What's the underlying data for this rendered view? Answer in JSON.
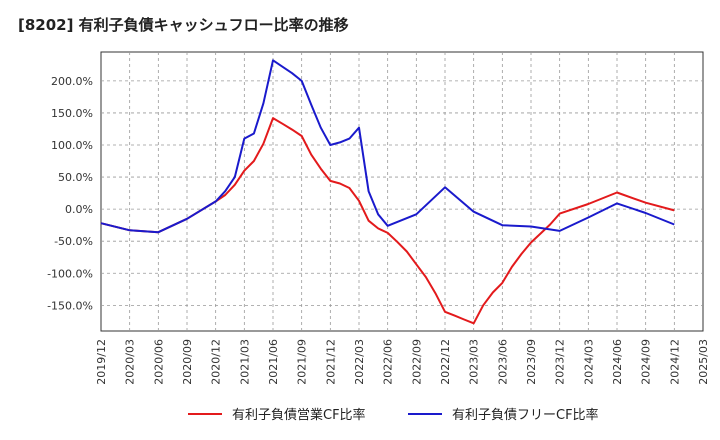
{
  "chart_data": {
    "type": "line",
    "title": "[8202]  有利子負債キャッシュフロー比率の推移",
    "xlabel": "",
    "ylabel": "",
    "ylim": [
      -190,
      245
    ],
    "yticks": [
      200,
      150,
      100,
      50,
      0,
      -50,
      -100,
      -150
    ],
    "ytick_labels": [
      "200.0%",
      "150.0%",
      "100.0%",
      "50.0%",
      "0.0%",
      "-50.0%",
      "-100.0%",
      "-150.0%"
    ],
    "x_tick_labels": [
      "2019/12",
      "2020/03",
      "2020/06",
      "2020/09",
      "2020/12",
      "2021/03",
      "2021/06",
      "2021/09",
      "2021/12",
      "2022/03",
      "2022/06",
      "2022/09",
      "2022/12",
      "2023/03",
      "2023/06",
      "2023/09",
      "2023/12",
      "2024/03",
      "2024/06",
      "2024/09",
      "2024/12",
      "2025/03"
    ],
    "grid": true,
    "legend_position": "bottom",
    "series": [
      {
        "name": "有利子負債営業CF比率",
        "color": "#e31a1c",
        "points": [
          [
            "2019/12",
            -22
          ],
          [
            "2020/03",
            -33
          ],
          [
            "2020/06",
            -36
          ],
          [
            "2020/09",
            -15
          ],
          [
            "2020/12",
            12
          ],
          [
            "2021/01",
            22
          ],
          [
            "2021/02",
            38
          ],
          [
            "2021/03",
            60
          ],
          [
            "2021/04",
            75
          ],
          [
            "2021/05",
            102
          ],
          [
            "2021/06",
            142
          ],
          [
            "2021/07",
            133
          ],
          [
            "2021/08",
            124
          ],
          [
            "2021/09",
            114
          ],
          [
            "2021/10",
            85
          ],
          [
            "2021/11",
            63
          ],
          [
            "2021/12",
            44
          ],
          [
            "2022/01",
            40
          ],
          [
            "2022/02",
            33
          ],
          [
            "2022/03",
            13
          ],
          [
            "2022/04",
            -18
          ],
          [
            "2022/05",
            -30
          ],
          [
            "2022/06",
            -37
          ],
          [
            "2022/07",
            -51
          ],
          [
            "2022/08",
            -66
          ],
          [
            "2022/09",
            -86
          ],
          [
            "2022/10",
            -106
          ],
          [
            "2022/11",
            -131
          ],
          [
            "2022/12",
            -160
          ],
          [
            "2023/01",
            -166
          ],
          [
            "2023/02",
            -172
          ],
          [
            "2023/03",
            -178
          ],
          [
            "2023/04",
            -150
          ],
          [
            "2023/05",
            -130
          ],
          [
            "2023/06",
            -115
          ],
          [
            "2023/07",
            -90
          ],
          [
            "2023/08",
            -70
          ],
          [
            "2023/09",
            -52
          ],
          [
            "2023/10",
            -38
          ],
          [
            "2023/11",
            -24
          ],
          [
            "2023/12",
            -7
          ],
          [
            "2024/03",
            8
          ],
          [
            "2024/06",
            26
          ],
          [
            "2024/09",
            10
          ],
          [
            "2024/12",
            -2
          ]
        ]
      },
      {
        "name": "有利子負債フリーCF比率",
        "color": "#1a1acc",
        "points": [
          [
            "2019/12",
            -22
          ],
          [
            "2020/03",
            -33
          ],
          [
            "2020/06",
            -36
          ],
          [
            "2020/09",
            -15
          ],
          [
            "2020/12",
            12
          ],
          [
            "2021/01",
            28
          ],
          [
            "2021/02",
            50
          ],
          [
            "2021/03",
            110
          ],
          [
            "2021/04",
            118
          ],
          [
            "2021/05",
            165
          ],
          [
            "2021/06",
            232
          ],
          [
            "2021/07",
            222
          ],
          [
            "2021/08",
            212
          ],
          [
            "2021/09",
            200
          ],
          [
            "2021/10",
            163
          ],
          [
            "2021/11",
            127
          ],
          [
            "2021/12",
            100
          ],
          [
            "2022/01",
            104
          ],
          [
            "2022/02",
            110
          ],
          [
            "2022/03",
            127
          ],
          [
            "2022/04",
            28
          ],
          [
            "2022/05",
            -8
          ],
          [
            "2022/06",
            -26
          ],
          [
            "2022/09",
            -8
          ],
          [
            "2022/12",
            34
          ],
          [
            "2023/03",
            -4
          ],
          [
            "2023/06",
            -25
          ],
          [
            "2023/09",
            -27
          ],
          [
            "2023/12",
            -34
          ],
          [
            "2024/03",
            -13
          ],
          [
            "2024/06",
            9
          ],
          [
            "2024/09",
            -6
          ],
          [
            "2024/12",
            -24
          ]
        ]
      }
    ]
  }
}
